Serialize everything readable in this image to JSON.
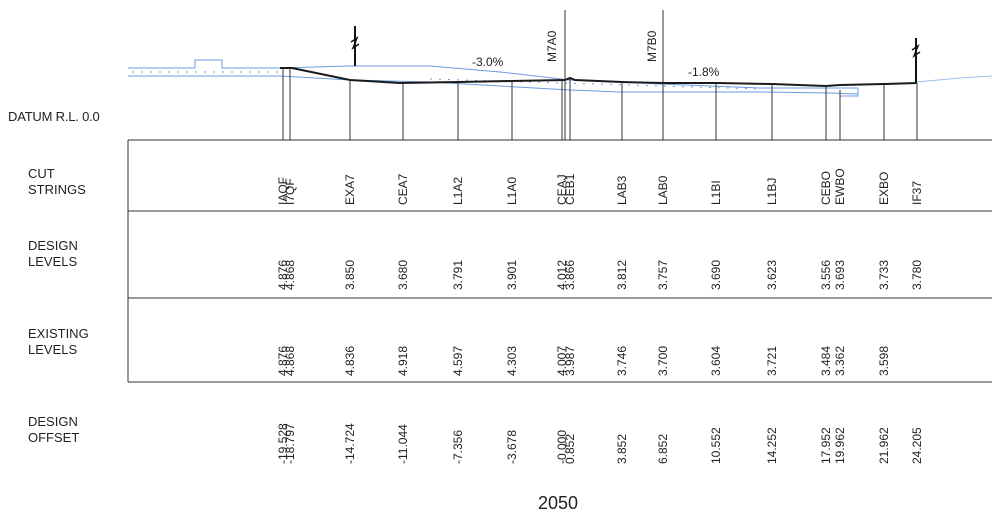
{
  "datum_label": "DATUM R.L. 0.0",
  "rows": {
    "cut_strings": [
      "CUT",
      "STRINGS"
    ],
    "design_levels": [
      "DESIGN",
      "LEVELS"
    ],
    "existing_levels": [
      "EXISTING",
      "LEVELS"
    ],
    "design_offset": [
      "DESIGN",
      "OFFSET"
    ]
  },
  "section_label": "2050",
  "annotations": {
    "grade_left": "-3.0%",
    "grade_right": "-1.8%",
    "marker_1": "M7A0",
    "marker_2": "M7B0"
  },
  "stations": [
    {
      "string": "IAQF",
      "design": "4.876",
      "existing": "4.876",
      "offset": "-19.528"
    },
    {
      "string": "I7QF",
      "design": "4.868",
      "existing": "4.868",
      "offset": "-18.797"
    },
    {
      "string": "EXA7",
      "design": "3.850",
      "existing": "4.836",
      "offset": "-14.724"
    },
    {
      "string": "CEA7",
      "design": "3.680",
      "existing": "4.918",
      "offset": "-11.044"
    },
    {
      "string": "L1A2",
      "design": "3.791",
      "existing": "4.597",
      "offset": "-7.356"
    },
    {
      "string": "L1A0",
      "design": "3.901",
      "existing": "4.303",
      "offset": "-3.678"
    },
    {
      "string": "CEAJ",
      "design": "4.012",
      "existing": "4.007",
      "offset": "-0.000"
    },
    {
      "string": "CEB1",
      "design": "3.866",
      "existing": "3.987",
      "offset": "0.852"
    },
    {
      "string": "LAB3",
      "design": "3.812",
      "existing": "3.746",
      "offset": "3.852"
    },
    {
      "string": "LAB0",
      "design": "3.757",
      "existing": "3.700",
      "offset": "6.852"
    },
    {
      "string": "L1BI",
      "design": "3.690",
      "existing": "3.604",
      "offset": "10.552"
    },
    {
      "string": "L1BJ",
      "design": "3.623",
      "existing": "3.721",
      "offset": "14.252"
    },
    {
      "string": "CEBO",
      "design": "3.556",
      "existing": "3.484",
      "offset": "17.952"
    },
    {
      "string": "EWBO",
      "design": "3.693",
      "existing": "3.362",
      "offset": "19.962"
    },
    {
      "string": "EXBO",
      "design": "3.733",
      "existing": "3.598",
      "offset": "21.962"
    },
    {
      "string": "IF37",
      "design": "3.780",
      "existing": "",
      "offset": "24.205"
    }
  ],
  "colors": {
    "design_line": "#1a1a1a",
    "existing_line": "#6b9be0",
    "grid": "#333333"
  }
}
